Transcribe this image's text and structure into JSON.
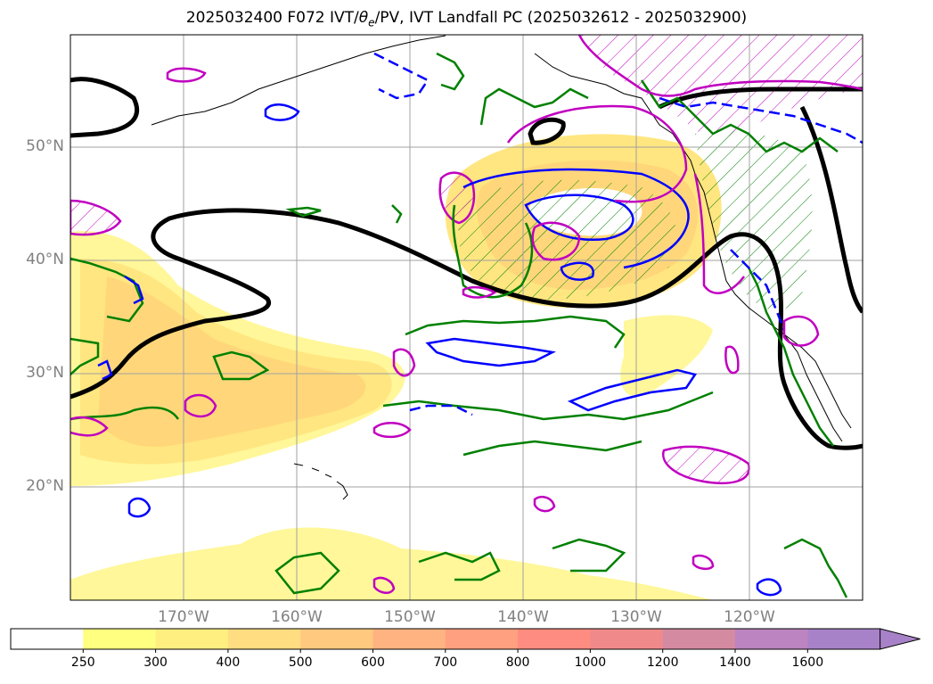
{
  "title_parts": {
    "prefix": "2025032400 F072 IVT/",
    "theta": "θ",
    "theta_sub": "e",
    "suffix": "/PV, IVT Landfall PC (2025032612 - 2025032900)"
  },
  "latitude_labels": [
    "50°N",
    "40°N",
    "30°N",
    "20°N"
  ],
  "longitude_labels": [
    "170°W",
    "160°W",
    "150°W",
    "140°W",
    "130°W",
    "120°W"
  ],
  "colorbar": {
    "tick_labels": [
      "250",
      "300",
      "400",
      "500",
      "600",
      "700",
      "800",
      "1000",
      "1200",
      "1400",
      "1600"
    ],
    "colors": [
      "#ffffff",
      "#ffff80",
      "#ffef80",
      "#ffdd80",
      "#ffc980",
      "#ffb380",
      "#ffa080",
      "#ff8c80",
      "#f08a8a",
      "#d48aa0",
      "#bc84c0",
      "#a882c8"
    ]
  },
  "colors": {
    "ivt_fill_outer": "#fff799",
    "ivt_fill_mid": "#ffe680",
    "ivt_fill_inner": "#ffd77a",
    "contour_black": "#000000",
    "contour_green": "#008000",
    "contour_blue": "#0000ff",
    "contour_magenta": "#c000c0",
    "grid": "#a0a0a0",
    "coastline": "#000000"
  }
}
